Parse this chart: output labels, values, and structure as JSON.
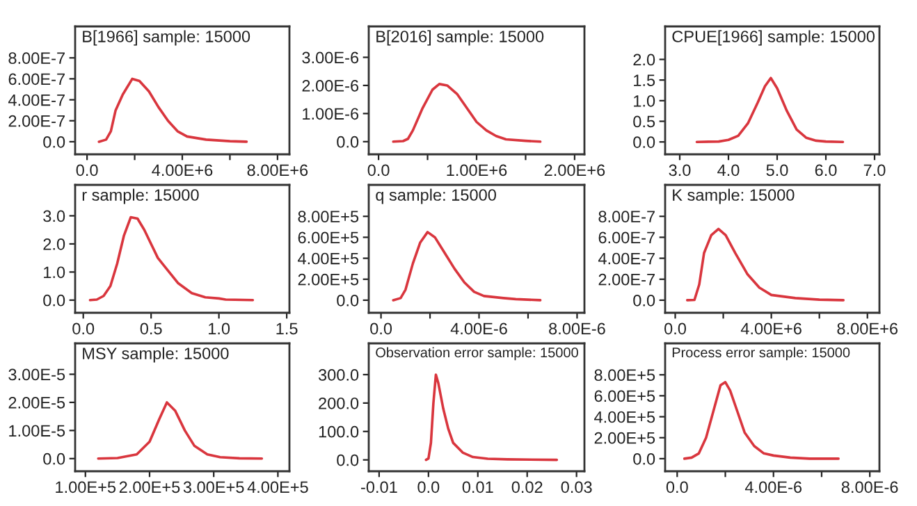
{
  "chart_data": [
    {
      "type": "line",
      "title": "B[1966] sample: 15000",
      "x": [
        500000.0,
        800000.0,
        1000000.0,
        1200000.0,
        1500000.0,
        1900000.0,
        2200000.0,
        2600000.0,
        3000000.0,
        3400000.0,
        3800000.0,
        4200000.0,
        5000000.0,
        6000000.0,
        6700000.0
      ],
      "series": [
        {
          "color": "#d9363e",
          "values": [
            0,
            2e-08,
            1e-07,
            3e-07,
            4.5e-07,
            6e-07,
            5.8e-07,
            4.8e-07,
            3.3e-07,
            2e-07,
            1e-07,
            5e-08,
            2e-08,
            5e-09,
            0
          ]
        }
      ],
      "xlim": [
        -500000.0,
        8500000.0
      ],
      "ylim": [
        -1.2e-07,
        1.1e-06
      ],
      "xticks": [
        {
          "value": 0,
          "label": "0.0"
        },
        {
          "value": 2000000.0,
          "label": null
        },
        {
          "value": 4000000.0,
          "label": "4.00E+6"
        },
        {
          "value": 6000000.0,
          "label": null
        },
        {
          "value": 8000000.0,
          "label": "8.00E+6"
        }
      ],
      "yticks": [
        {
          "value": 0,
          "label": "0.0"
        },
        {
          "value": 2e-07,
          "label": "2.00E-7"
        },
        {
          "value": 4e-07,
          "label": "4.00E-7"
        },
        {
          "value": 6e-07,
          "label": "6.00E-7"
        },
        {
          "value": 8e-07,
          "label": "8.00E-7"
        }
      ]
    },
    {
      "type": "line",
      "title": "B[2016] sample: 15000",
      "x": [
        150000.0,
        250000.0,
        300000.0,
        350000.0,
        450000.0,
        550000.0,
        620000.0,
        700000.0,
        800000.0,
        900000.0,
        1000000.0,
        1100000.0,
        1200000.0,
        1300000.0,
        1500000.0,
        1650000.0
      ],
      "series": [
        {
          "color": "#d9363e",
          "values": [
            0,
            2e-08,
            1e-07,
            4e-07,
            1.2e-06,
            1.85e-06,
            2.05e-06,
            2e-06,
            1.7e-06,
            1.2e-06,
            7e-07,
            4e-07,
            2e-07,
            8e-08,
            3e-08,
            0
          ]
        }
      ],
      "xlim": [
        -100000.0,
        2100000.0
      ],
      "ylim": [
        -4.5e-07,
        4.1e-06
      ],
      "xticks": [
        {
          "value": 0,
          "label": "0.0"
        },
        {
          "value": 500000.0,
          "label": null
        },
        {
          "value": 1000000.0,
          "label": "1.00E+6"
        },
        {
          "value": 1500000.0,
          "label": null
        },
        {
          "value": 2000000.0,
          "label": "2.00E+6"
        }
      ],
      "yticks": [
        {
          "value": 0,
          "label": "0.0"
        },
        {
          "value": 1e-06,
          "label": "1.00E-6"
        },
        {
          "value": 2e-06,
          "label": "2.00E-6"
        },
        {
          "value": 3e-06,
          "label": "3.00E-6"
        }
      ]
    },
    {
      "type": "line",
      "title": "CPUE[1966] sample: 15000",
      "x": [
        3.35,
        3.8,
        4.0,
        4.2,
        4.4,
        4.6,
        4.75,
        4.87,
        5.0,
        5.2,
        5.4,
        5.6,
        5.8,
        6.0,
        6.35
      ],
      "series": [
        {
          "color": "#d9363e",
          "values": [
            0,
            0.01,
            0.05,
            0.15,
            0.45,
            0.95,
            1.35,
            1.55,
            1.3,
            0.75,
            0.3,
            0.1,
            0.03,
            0.01,
            0
          ]
        }
      ],
      "xlim": [
        2.7,
        7.1
      ],
      "ylim": [
        -0.3,
        2.8
      ],
      "xticks": [
        {
          "value": 3,
          "label": "3.0"
        },
        {
          "value": 4,
          "label": "4.0"
        },
        {
          "value": 5,
          "label": "5.0"
        },
        {
          "value": 6,
          "label": "6.0"
        },
        {
          "value": 7,
          "label": "7.0"
        }
      ],
      "yticks": [
        {
          "value": 0,
          "label": "0.0"
        },
        {
          "value": 0.5,
          "label": "0.5"
        },
        {
          "value": 1,
          "label": "1.0"
        },
        {
          "value": 1.5,
          "label": "1.5"
        },
        {
          "value": 2,
          "label": "2.0"
        }
      ]
    },
    {
      "type": "line",
      "title": "r sample: 15000",
      "x": [
        0.05,
        0.1,
        0.15,
        0.2,
        0.25,
        0.3,
        0.35,
        0.4,
        0.45,
        0.5,
        0.55,
        0.6,
        0.7,
        0.8,
        0.9,
        1.0,
        1.05,
        1.25
      ],
      "series": [
        {
          "color": "#d9363e",
          "values": [
            0,
            0.02,
            0.15,
            0.5,
            1.3,
            2.3,
            2.95,
            2.9,
            2.5,
            2.0,
            1.5,
            1.2,
            0.6,
            0.25,
            0.1,
            0.06,
            0.02,
            0
          ]
        }
      ],
      "xlim": [
        -0.06,
        1.52
      ],
      "ylim": [
        -0.45,
        4.1
      ],
      "xticks": [
        {
          "value": 0,
          "label": "0.0"
        },
        {
          "value": 0.5,
          "label": "0.5"
        },
        {
          "value": 1,
          "label": "1.0"
        },
        {
          "value": 1.5,
          "label": "1.5"
        }
      ],
      "yticks": [
        {
          "value": 0,
          "label": "0.0"
        },
        {
          "value": 1,
          "label": "1.0"
        },
        {
          "value": 2,
          "label": "2.0"
        },
        {
          "value": 3,
          "label": "3.0"
        }
      ]
    },
    {
      "type": "line",
      "title": "q sample: 15000",
      "x": [
        5e-07,
        8e-07,
        1e-06,
        1.3e-06,
        1.6e-06,
        1.9e-06,
        2.2e-06,
        2.6e-06,
        3e-06,
        3.4e-06,
        3.8e-06,
        4.2e-06,
        5e-06,
        5.5e-06,
        6.5e-06
      ],
      "series": [
        {
          "color": "#d9363e",
          "values": [
            0,
            20000.0,
            100000.0,
            350000.0,
            550000.0,
            650000.0,
            600000.0,
            450000.0,
            300000.0,
            170000.0,
            80000.0,
            40000.0,
            20000.0,
            10000.0,
            0
          ]
        }
      ],
      "xlim": [
        -5e-07,
        8.3e-06
      ],
      "ylim": [
        -120000.0,
        1100000.0
      ],
      "xticks": [
        {
          "value": 0,
          "label": "0.0"
        },
        {
          "value": 2e-06,
          "label": null
        },
        {
          "value": 4e-06,
          "label": "4.00E-6"
        },
        {
          "value": 6e-06,
          "label": null
        },
        {
          "value": 8e-06,
          "label": "8.00E-6"
        }
      ],
      "yticks": [
        {
          "value": 0,
          "label": "0.0"
        },
        {
          "value": 200000.0,
          "label": "2.00E+5"
        },
        {
          "value": 400000.0,
          "label": "4.00E+5"
        },
        {
          "value": 600000.0,
          "label": "6.00E+5"
        },
        {
          "value": 800000.0,
          "label": "8.00E+5"
        }
      ]
    },
    {
      "type": "line",
      "title": "K sample: 15000",
      "x": [
        500000.0,
        800000.0,
        1000000.0,
        1200000.0,
        1500000.0,
        1800000.0,
        2100000.0,
        2500000.0,
        3000000.0,
        3500000.0,
        4000000.0,
        5000000.0,
        6000000.0,
        7000000.0
      ],
      "series": [
        {
          "color": "#d9363e",
          "values": [
            0,
            3e-09,
            1.5e-07,
            4.5e-07,
            6.2e-07,
            6.8e-07,
            6.2e-07,
            4.5e-07,
            2.5e-07,
            1.2e-07,
            5e-08,
            2e-08,
            5e-09,
            0
          ]
        }
      ],
      "xlim": [
        -420000.0,
        8500000.0
      ],
      "ylim": [
        -1.2e-07,
        1.1e-06
      ],
      "xticks": [
        {
          "value": 0,
          "label": "0.0"
        },
        {
          "value": 2000000.0,
          "label": null
        },
        {
          "value": 4000000.0,
          "label": "4.00E+6"
        },
        {
          "value": 6000000.0,
          "label": null
        },
        {
          "value": 8000000.0,
          "label": "8.00E+6"
        }
      ],
      "yticks": [
        {
          "value": 0,
          "label": "0.0"
        },
        {
          "value": 2e-07,
          "label": "2.00E-7"
        },
        {
          "value": 4e-07,
          "label": "4.00E-7"
        },
        {
          "value": 6e-07,
          "label": "6.00E-7"
        },
        {
          "value": 8e-07,
          "label": "8.00E-7"
        }
      ]
    },
    {
      "type": "line",
      "title": "MSY sample: 15000",
      "x": [
        120000.0,
        150000.0,
        180000.0,
        200000.0,
        215000.0,
        227000.0,
        240000.0,
        255000.0,
        270000.0,
        290000.0,
        310000.0,
        340000.0,
        375000.0
      ],
      "series": [
        {
          "color": "#d9363e",
          "values": [
            0,
            2e-07,
            1.5e-06,
            6e-06,
            1.4e-05,
            2e-05,
            1.7e-05,
            1e-05,
            4.5e-06,
            1.5e-06,
            5e-07,
            1e-07,
            0
          ]
        }
      ],
      "xlim": [
        84000.0,
        418000.0
      ],
      "ylim": [
        -4.5e-06,
        4.1e-05
      ],
      "xticks": [
        {
          "value": 100000.0,
          "label": "1.00E+5"
        },
        {
          "value": 200000.0,
          "label": "2.00E+5"
        },
        {
          "value": 300000.0,
          "label": "3.00E+5"
        },
        {
          "value": 400000.0,
          "label": "4.00E+5"
        }
      ],
      "yticks": [
        {
          "value": 0,
          "label": "0.0"
        },
        {
          "value": 1e-05,
          "label": "1.00E-5"
        },
        {
          "value": 2e-05,
          "label": "2.00E-5"
        },
        {
          "value": 3e-05,
          "label": "3.00E-5"
        }
      ]
    },
    {
      "type": "line",
      "title": "Observation error sample: 15000",
      "x": [
        -0.0005,
        0.0,
        0.0005,
        0.001,
        0.0015,
        0.002,
        0.003,
        0.004,
        0.005,
        0.007,
        0.009,
        0.012,
        0.016,
        0.026
      ],
      "series": [
        {
          "color": "#d9363e",
          "values": [
            0,
            5,
            60,
            200,
            300,
            270,
            180,
            110,
            60,
            25,
            10,
            4,
            2,
            0
          ]
        }
      ],
      "xlim": [
        -0.0121,
        0.0316
      ],
      "ylim": [
        -40,
        410
      ],
      "xticks": [
        {
          "value": -0.01,
          "label": "-0.01"
        },
        {
          "value": 0,
          "label": "0.0"
        },
        {
          "value": 0.01,
          "label": "0.01"
        },
        {
          "value": 0.02,
          "label": "0.02"
        },
        {
          "value": 0.03,
          "label": "0.03"
        }
      ],
      "yticks": [
        {
          "value": 0,
          "label": "0.0"
        },
        {
          "value": 100,
          "label": "100.0"
        },
        {
          "value": 200,
          "label": "200.0"
        },
        {
          "value": 300,
          "label": "300.0"
        }
      ]
    },
    {
      "type": "line",
      "title": "Process error sample: 15000",
      "x": [
        3e-07,
        6e-07,
        9e-07,
        1.2e-06,
        1.5e-06,
        1.8e-06,
        2e-06,
        2.2e-06,
        2.5e-06,
        2.8e-06,
        3.2e-06,
        3.6e-06,
        4e-06,
        4.7e-06,
        5.5e-06,
        6.7e-06
      ],
      "series": [
        {
          "color": "#d9363e",
          "values": [
            0,
            10000.0,
            50000.0,
            200000.0,
            450000.0,
            700000.0,
            730000.0,
            650000.0,
            450000.0,
            250000.0,
            120000.0,
            50000.0,
            30000.0,
            10000.0,
            0,
            0
          ]
        }
      ],
      "xlim": [
        -5e-07,
        8.4e-06
      ],
      "ylim": [
        -120000.0,
        1100000.0
      ],
      "xticks": [
        {
          "value": 0,
          "label": "0.0"
        },
        {
          "value": 2e-06,
          "label": null
        },
        {
          "value": 4e-06,
          "label": "4.00E-6"
        },
        {
          "value": 6e-06,
          "label": null
        },
        {
          "value": 8e-06,
          "label": "8.00E-6"
        }
      ],
      "yticks": [
        {
          "value": 0,
          "label": "0.0"
        },
        {
          "value": 200000.0,
          "label": "2.00E+5"
        },
        {
          "value": 400000.0,
          "label": "4.00E+5"
        },
        {
          "value": 600000.0,
          "label": "6.00E+5"
        },
        {
          "value": 800000.0,
          "label": "8.00E+5"
        }
      ]
    }
  ]
}
